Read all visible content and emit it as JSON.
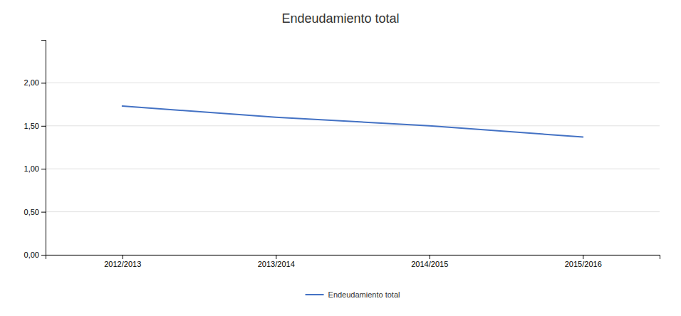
{
  "chart_data": {
    "type": "line",
    "title": "Endeudamiento total",
    "categories": [
      "2012/2013",
      "2013/2014",
      "2014/2015",
      "2015/2016"
    ],
    "series": [
      {
        "name": "Endeudamiento total",
        "color": "#4472C4",
        "values": [
          1.73,
          1.6,
          1.5,
          1.37
        ]
      }
    ],
    "ylim": [
      0.0,
      2.5
    ],
    "yticks": [
      {
        "value": 0.0,
        "label": "0,00"
      },
      {
        "value": 0.5,
        "label": "0,50"
      },
      {
        "value": 1.0,
        "label": "1,00"
      },
      {
        "value": 1.5,
        "label": "1,50"
      },
      {
        "value": 2.0,
        "label": "2,00"
      }
    ],
    "grid": true,
    "legend": "bottom"
  }
}
